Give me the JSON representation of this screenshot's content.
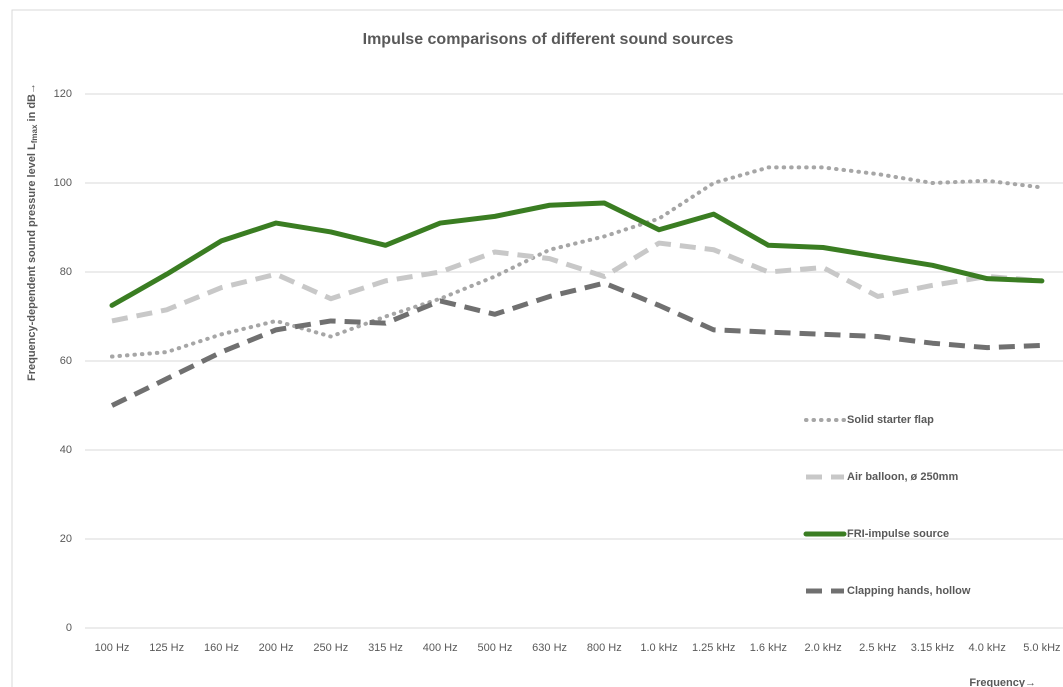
{
  "chart_data": {
    "type": "line",
    "title": "Impulse comparisons of different sound sources",
    "ylabel": {
      "text": "Frequency-dependent sound pressure level L",
      "subscript": "fmax",
      "suffix": " in dB→"
    },
    "xlabel": "Frequency→",
    "categories": [
      "100 Hz",
      "125 Hz",
      "160 Hz",
      "200 Hz",
      "250 Hz",
      "315 Hz",
      "400 Hz",
      "500 Hz",
      "630 Hz",
      "800 Hz",
      "1.0 kHz",
      "1.25 kHz",
      "1.6 kHz",
      "2.0 kHz",
      "2.5 kHz",
      "3.15 kHz",
      "4.0 kHz",
      "5.0 kHz"
    ],
    "series": [
      {
        "name": "Solid starter flap",
        "color": "#a6a6a6",
        "style": "dotted",
        "values": [
          61,
          62,
          66,
          69,
          65.5,
          70,
          74,
          79,
          85,
          88,
          92,
          100,
          103.5,
          103.5,
          102,
          100,
          100.5,
          99
        ]
      },
      {
        "name": "Air balloon, ø 250mm",
        "color": "#c8c8c8",
        "style": "dashed",
        "values": [
          69,
          71.5,
          76.5,
          79.5,
          74,
          78,
          80,
          84.5,
          83,
          79,
          86.5,
          85,
          80,
          81,
          74.5,
          77,
          79,
          78
        ]
      },
      {
        "name": "FRI-impulse source",
        "color": "#3a7d22",
        "style": "solid",
        "values": [
          72.5,
          79.5,
          87,
          91,
          89,
          86,
          91,
          92.5,
          95,
          95.5,
          89.5,
          93,
          86,
          85.5,
          83.5,
          81.5,
          78.5,
          78
        ]
      },
      {
        "name": "Clapping hands, hollow",
        "color": "#707070",
        "style": "dashed",
        "values": [
          50,
          56,
          62,
          67,
          69,
          68.5,
          73.5,
          70.5,
          74.5,
          77.5,
          72.5,
          67,
          66.5,
          66,
          65.5,
          64,
          63,
          63.5
        ]
      }
    ],
    "ylim": [
      0,
      120
    ],
    "yticks": [
      0,
      20,
      40,
      60,
      80,
      100,
      120
    ],
    "grid": true,
    "legend": "right"
  }
}
